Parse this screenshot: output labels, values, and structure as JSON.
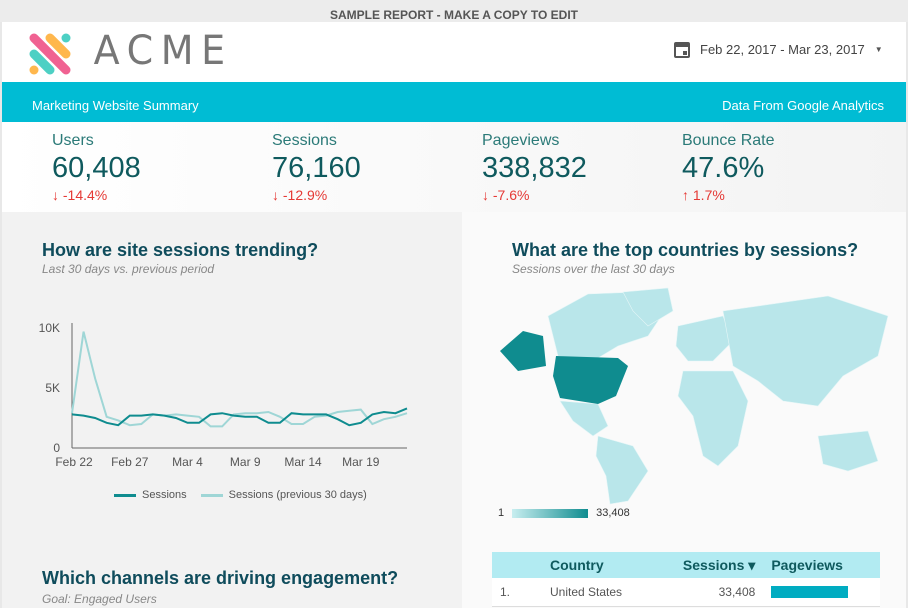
{
  "banner": "SAMPLE REPORT - MAKE A COPY TO EDIT",
  "brand": "ACME",
  "date_range": "Feb 22, 2017 - Mar 23, 2017",
  "band": {
    "left": "Marketing Website Summary",
    "right": "Data From Google Analytics"
  },
  "colors": {
    "accent": "#00bcd4",
    "dark_teal": "#0f8c8f",
    "light_teal": "#9fd6d6",
    "down": "#e53935"
  },
  "kpis": [
    {
      "label": "Users",
      "value": "60,408",
      "delta": "-14.4%",
      "dir": "down"
    },
    {
      "label": "Sessions",
      "value": "76,160",
      "delta": "-12.9%",
      "dir": "down"
    },
    {
      "label": "Pageviews",
      "value": "338,832",
      "delta": "-7.6%",
      "dir": "down"
    },
    {
      "label": "Bounce Rate",
      "value": "47.6%",
      "delta": "1.7%",
      "dir": "up"
    }
  ],
  "trend": {
    "title": "How are site sessions trending?",
    "subtitle": "Last 30 days vs. previous period"
  },
  "chart_data": {
    "type": "line",
    "x_ticks": [
      "Feb 22",
      "Feb 27",
      "Mar 4",
      "Mar 9",
      "Mar 14",
      "Mar 19"
    ],
    "y_ticks": [
      "0",
      "5K",
      "10K"
    ],
    "ylim": [
      0,
      10000
    ],
    "series": [
      {
        "name": "Sessions",
        "values": [
          2800,
          2700,
          2500,
          2100,
          1900,
          2700,
          2700,
          2800,
          2700,
          2500,
          2100,
          2100,
          2800,
          2900,
          2700,
          2600,
          2600,
          2100,
          2100,
          2900,
          2800,
          2800,
          2800,
          2400,
          1900,
          2100,
          2800,
          3000,
          2900,
          3300
        ]
      },
      {
        "name": "Sessions (previous 30 days)",
        "values": [
          2900,
          9700,
          5800,
          2600,
          2300,
          1900,
          2000,
          2800,
          2700,
          2800,
          2700,
          2600,
          1800,
          1800,
          2800,
          2900,
          2900,
          3000,
          2600,
          2000,
          2000,
          2600,
          2700,
          3000,
          3100,
          3200,
          2000,
          2400,
          2600,
          2900
        ]
      }
    ]
  },
  "channels": {
    "title": "Which channels are driving engagement?",
    "subtitle": "Goal: Engaged Users"
  },
  "countries": {
    "title": "What are the top countries by sessions?",
    "subtitle": "Sessions over the last 30 days",
    "scale_min": "1",
    "scale_max": "33,408",
    "table": {
      "headers": [
        "Country",
        "Sessions ▾",
        "Pageviews"
      ],
      "rows": [
        {
          "rank": "1.",
          "country": "United States",
          "sessions": "33,408",
          "pageviews_fill": 1.0
        }
      ]
    }
  }
}
